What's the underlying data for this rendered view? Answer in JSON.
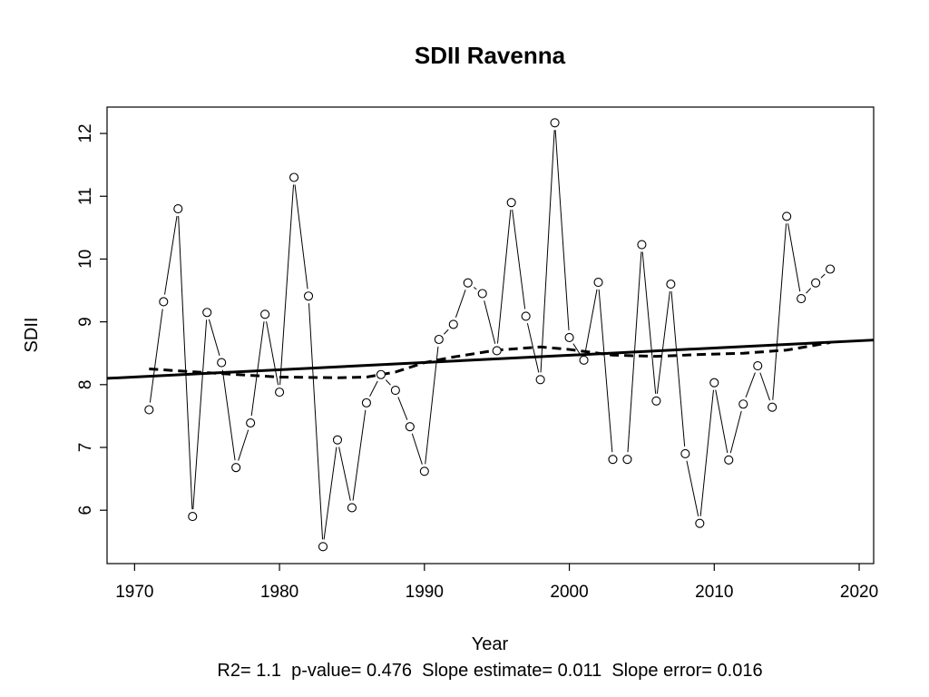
{
  "chart_data": {
    "type": "line",
    "title": "SDII   Ravenna",
    "xlabel": "Year",
    "ylabel": "SDII",
    "footnote": "R2= 1.1  p-value= 0.476  Slope estimate= 0.011  Slope error= 0.016",
    "xlim": [
      1968.1,
      2021.0
    ],
    "ylim": [
      5.15,
      12.42
    ],
    "x_ticks": [
      1970,
      1980,
      1990,
      2000,
      2010,
      2020
    ],
    "y_ticks": [
      6,
      7,
      8,
      9,
      10,
      11,
      12
    ],
    "grid": false,
    "legend": "none",
    "series": [
      {
        "style": "line-with-open-circles",
        "x": [
          1971,
          1972,
          1973,
          1974,
          1975,
          1976,
          1977,
          1978,
          1979,
          1980,
          1981,
          1982,
          1983,
          1984,
          1985,
          1986,
          1987,
          1988,
          1989,
          1990,
          1991,
          1992,
          1993,
          1994,
          1995,
          1996,
          1997,
          1998,
          1999,
          2000,
          2001,
          2002,
          2003,
          2004,
          2005,
          2006,
          2007,
          2008,
          2009,
          2010,
          2011,
          2012,
          2013,
          2014,
          2015,
          2016,
          2017,
          2018
        ],
        "y": [
          7.6,
          9.32,
          10.8,
          5.9,
          9.15,
          8.35,
          6.68,
          7.39,
          9.12,
          7.88,
          11.3,
          9.41,
          5.42,
          7.12,
          6.04,
          7.71,
          8.16,
          7.91,
          7.33,
          6.62,
          8.72,
          8.96,
          9.62,
          9.45,
          8.54,
          10.9,
          9.09,
          8.08,
          12.17,
          8.75,
          8.39,
          9.63,
          6.81,
          6.81,
          10.23,
          7.74,
          9.6,
          6.9,
          5.79,
          8.03,
          6.8,
          7.69,
          8.3,
          7.64,
          10.68,
          9.37,
          9.62,
          9.84
        ]
      },
      {
        "style": "trend-solid",
        "x": [
          1968.1,
          2021.0
        ],
        "y": [
          8.1,
          8.71
        ]
      },
      {
        "style": "smooth-dashed",
        "x": [
          1971,
          1975,
          1980,
          1984,
          1986,
          1988,
          1990,
          1992,
          1995,
          1998,
          2000,
          2003,
          2006,
          2009,
          2012,
          2015,
          2018
        ],
        "y": [
          8.25,
          8.19,
          8.12,
          8.11,
          8.12,
          8.2,
          8.35,
          8.44,
          8.55,
          8.6,
          8.56,
          8.47,
          8.45,
          8.48,
          8.5,
          8.55,
          8.67
        ]
      }
    ]
  }
}
